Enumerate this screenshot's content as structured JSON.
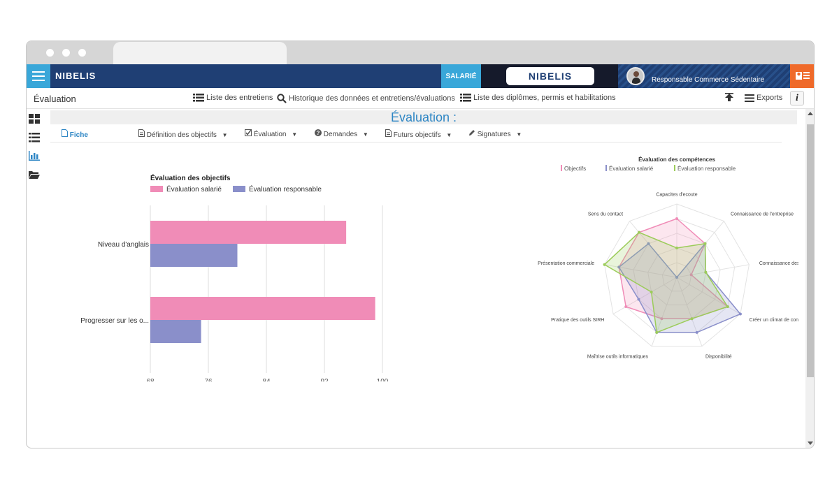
{
  "app": {
    "brand": "NIBELIS",
    "role_badge": "SALARIÉ",
    "center_logo": "NIBELIS",
    "user_role": "Responsable Commerce Sédentaire"
  },
  "subbar": {
    "page_label": "Évaluation",
    "links": [
      "Liste des entretiens",
      "Historique des données et entretiens/évaluations",
      "Liste des diplômes, permis et habilitations"
    ],
    "exports": "Exports",
    "info": "i"
  },
  "main": {
    "title": "Évaluation :",
    "tabs": [
      {
        "label": "Fiche",
        "icon": "document-icon",
        "active": true
      },
      {
        "label": "Définition des objectifs",
        "icon": "document-icon",
        "dropdown": true
      },
      {
        "label": "Évaluation",
        "icon": "checkbox-icon",
        "dropdown": true
      },
      {
        "label": "Demandes",
        "icon": "question-circle-icon",
        "dropdown": true
      },
      {
        "label": "Futurs objectifs",
        "icon": "document-icon",
        "dropdown": true
      },
      {
        "label": "Signatures",
        "icon": "pencil-icon",
        "dropdown": true
      }
    ]
  },
  "colors": {
    "pink": "#f08cb7",
    "blue": "#8a8fca",
    "green": "#9ccc5a",
    "accent": "#2c85c4",
    "navy": "#1f3f74",
    "orange": "#ef6a2a"
  },
  "chart_data": [
    {
      "type": "bar",
      "orientation": "horizontal",
      "title": "Évaluation des objectifs",
      "categories": [
        "Niveau d'anglais",
        "Progresser sur les o..."
      ],
      "series": [
        {
          "name": "Évaluation salarié",
          "values": [
            95,
            99
          ]
        },
        {
          "name": "Évaluation responsable",
          "values": [
            80,
            75
          ]
        }
      ],
      "xlim": [
        68,
        100
      ],
      "xticks": [
        68,
        76,
        84,
        92,
        100
      ],
      "grid": true,
      "legend": "top-left"
    },
    {
      "type": "radar",
      "title": "Évaluation des compétences",
      "axes": [
        "Capacites d'ecoute",
        "Connaissance de l'entreprise",
        "Connaissance des métiers N",
        "Créer un climat de confiance",
        "Disponibilité",
        "Maîtrise outils informatiques",
        "Pratique des outils SIRH",
        "Présentation commerciale",
        "Sens du contact"
      ],
      "rmax": 1,
      "series": [
        {
          "name": "Objectifs",
          "values": [
            0.8,
            0.6,
            0.2,
            0.8,
            0.6,
            0.6,
            0.8,
            0.8,
            0.8
          ]
        },
        {
          "name": "Évaluation salarié",
          "values": [
            0.0,
            0.6,
            0.4,
            1.0,
            0.8,
            0.8,
            0.6,
            0.8,
            0.6
          ]
        },
        {
          "name": "Évaluation responsable",
          "values": [
            0.4,
            0.6,
            0.4,
            0.8,
            0.6,
            0.8,
            0.4,
            1.0,
            0.8
          ]
        }
      ],
      "legend": "top"
    }
  ]
}
